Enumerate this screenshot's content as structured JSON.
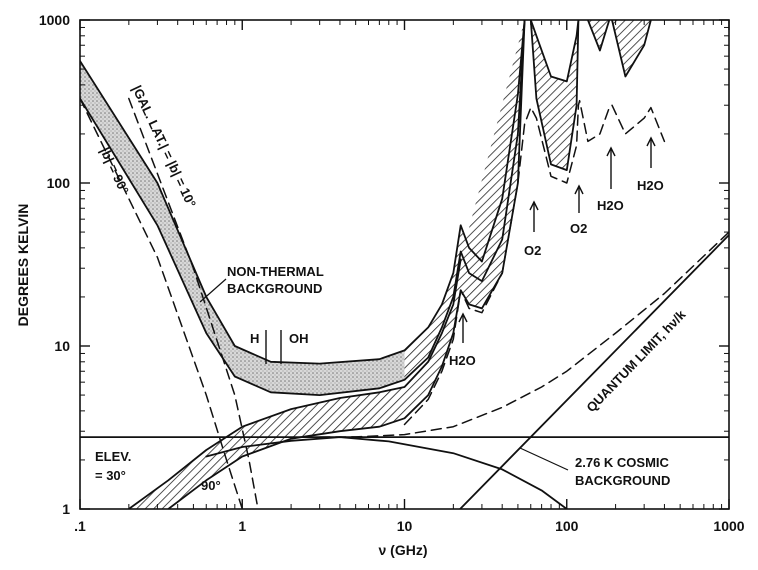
{
  "chart_data": {
    "type": "line",
    "title": "",
    "xlabel": "ν (GHz)",
    "ylabel": "DEGREES KELVIN",
    "x_scale": "log",
    "y_scale": "log",
    "xlim": [
      0.1,
      1000
    ],
    "ylim": [
      1,
      1000
    ],
    "x_ticks": [
      ".1",
      "1",
      "10",
      "100",
      "1000"
    ],
    "y_ticks": [
      "1",
      "10",
      "100",
      "1000"
    ],
    "grid": false,
    "legend": "none",
    "series": [
      {
        "style": "solid",
        "points": [
          [
            0.1,
            560
          ],
          [
            0.3,
            100
          ],
          [
            0.6,
            20
          ],
          [
            0.9,
            10
          ],
          [
            1.5,
            8
          ],
          [
            3,
            7.8
          ],
          [
            7,
            8.3
          ],
          [
            10,
            9.4
          ],
          [
            14,
            13
          ],
          [
            17,
            18
          ],
          [
            20,
            28
          ],
          [
            22.2,
            55
          ],
          [
            25,
            40
          ],
          [
            30,
            33
          ],
          [
            40,
            80
          ],
          [
            50,
            350
          ],
          [
            55,
            1000
          ]
        ]
      },
      {
        "style": "solid",
        "points": [
          [
            0.1,
            330
          ],
          [
            0.3,
            55
          ],
          [
            0.6,
            12
          ],
          [
            0.9,
            6.5
          ],
          [
            1.5,
            5.2
          ],
          [
            3,
            5
          ],
          [
            7,
            5.5
          ],
          [
            10,
            6.2
          ],
          [
            14,
            8.5
          ],
          [
            17,
            13
          ],
          [
            20,
            20
          ],
          [
            22.2,
            38
          ],
          [
            25,
            28
          ],
          [
            30,
            25
          ],
          [
            40,
            45
          ],
          [
            50,
            200
          ],
          [
            55,
            1000
          ]
        ]
      },
      {
        "style": "solid",
        "points": [
          [
            0.2,
            1
          ],
          [
            0.35,
            1.5
          ],
          [
            0.6,
            2.3
          ],
          [
            1,
            3.2
          ],
          [
            2,
            4.1
          ],
          [
            4,
            4.8
          ],
          [
            7,
            5.2
          ],
          [
            10,
            5.6
          ],
          [
            14,
            8
          ],
          [
            17,
            12
          ],
          [
            20,
            18
          ],
          [
            22.2,
            34
          ]
        ]
      },
      {
        "style": "solid",
        "points": [
          [
            0.35,
            1
          ],
          [
            0.6,
            1.5
          ],
          [
            1,
            2.1
          ],
          [
            2,
            2.7
          ],
          [
            4,
            3
          ],
          [
            7,
            3.2
          ],
          [
            10,
            3.6
          ],
          [
            14,
            5
          ],
          [
            17,
            7.5
          ],
          [
            20,
            12
          ],
          [
            22.2,
            22
          ],
          [
            25,
            18
          ],
          [
            30,
            17
          ],
          [
            40,
            28
          ],
          [
            50,
            100
          ],
          [
            55,
            1000
          ]
        ]
      },
      {
        "style": "solid",
        "points": [
          [
            60,
            1000
          ],
          [
            65,
            330
          ],
          [
            80,
            130
          ],
          [
            100,
            120
          ],
          [
            115,
            300
          ],
          [
            118,
            1000
          ]
        ]
      },
      {
        "style": "solid",
        "points": [
          [
            60,
            1000
          ],
          [
            65,
            800
          ],
          [
            80,
            450
          ],
          [
            100,
            420
          ],
          [
            115,
            800
          ],
          [
            118,
            1000
          ]
        ]
      },
      {
        "style": "solid",
        "points": [
          [
            135,
            1000
          ],
          [
            160,
            650
          ],
          [
            183,
            1000
          ]
        ]
      },
      {
        "style": "solid",
        "points": [
          [
            190,
            1000
          ],
          [
            230,
            450
          ],
          [
            300,
            700
          ],
          [
            330,
            1000
          ]
        ]
      },
      {
        "style": "dashed",
        "points": [
          [
            0.1,
            330
          ],
          [
            0.3,
            35
          ],
          [
            0.6,
            5
          ],
          [
            0.8,
            2
          ],
          [
            1,
            1
          ]
        ]
      },
      {
        "style": "dashed",
        "points": [
          [
            0.2,
            330
          ],
          [
            0.5,
            30
          ],
          [
            0.9,
            5
          ],
          [
            1.1,
            2
          ],
          [
            1.25,
            1
          ]
        ]
      },
      {
        "style": "dashed",
        "points": [
          [
            10,
            3.3
          ],
          [
            14,
            4.7
          ],
          [
            17,
            7
          ],
          [
            20,
            11
          ],
          [
            22.2,
            22
          ],
          [
            25,
            17
          ],
          [
            30,
            16
          ],
          [
            40,
            28
          ],
          [
            50,
            100
          ],
          [
            55,
            230
          ],
          [
            60,
            290
          ],
          [
            65,
            250
          ],
          [
            80,
            110
          ],
          [
            100,
            100
          ],
          [
            115,
            170
          ],
          [
            118,
            300
          ],
          [
            120,
            320
          ],
          [
            135,
            180
          ],
          [
            160,
            200
          ],
          [
            183,
            290
          ],
          [
            190,
            300
          ],
          [
            230,
            200
          ],
          [
            300,
            250
          ],
          [
            330,
            290
          ],
          [
            400,
            180
          ]
        ]
      },
      {
        "style": "dashed",
        "points": [
          [
            3,
            2.76
          ],
          [
            5,
            2.77
          ],
          [
            10,
            2.86
          ],
          [
            20,
            3.2
          ],
          [
            40,
            4.2
          ],
          [
            70,
            5.6
          ],
          [
            100,
            7
          ],
          [
            200,
            12
          ],
          [
            400,
            21
          ],
          [
            1000,
            50
          ]
        ]
      },
      {
        "style": "solid",
        "points": [
          [
            22,
            1
          ],
          [
            1000,
            48
          ]
        ]
      },
      {
        "style": "solid",
        "points": [
          [
            0.1,
            2.76
          ],
          [
            1000,
            2.76
          ]
        ]
      },
      {
        "style": "solid",
        "points": [
          [
            0.6,
            2.1
          ],
          [
            1,
            2.4
          ],
          [
            2,
            2.62
          ],
          [
            4,
            2.76
          ],
          [
            8,
            2.6
          ],
          [
            20,
            2.2
          ],
          [
            40,
            1.75
          ],
          [
            70,
            1.3
          ],
          [
            100,
            1
          ]
        ]
      }
    ],
    "annotations": [
      "|GAL. LAT.| = |b| = 10°",
      "|b| = 90°",
      "NON-THERMAL",
      "BACKGROUND",
      "H",
      "OH",
      "ELEV.",
      "= 30°",
      "90°",
      "H2O",
      "H2O",
      "O2",
      "O2",
      "H2O",
      "QUANTUM LIMIT, hν/k",
      "2.76 K COSMIC",
      "BACKGROUND"
    ]
  }
}
